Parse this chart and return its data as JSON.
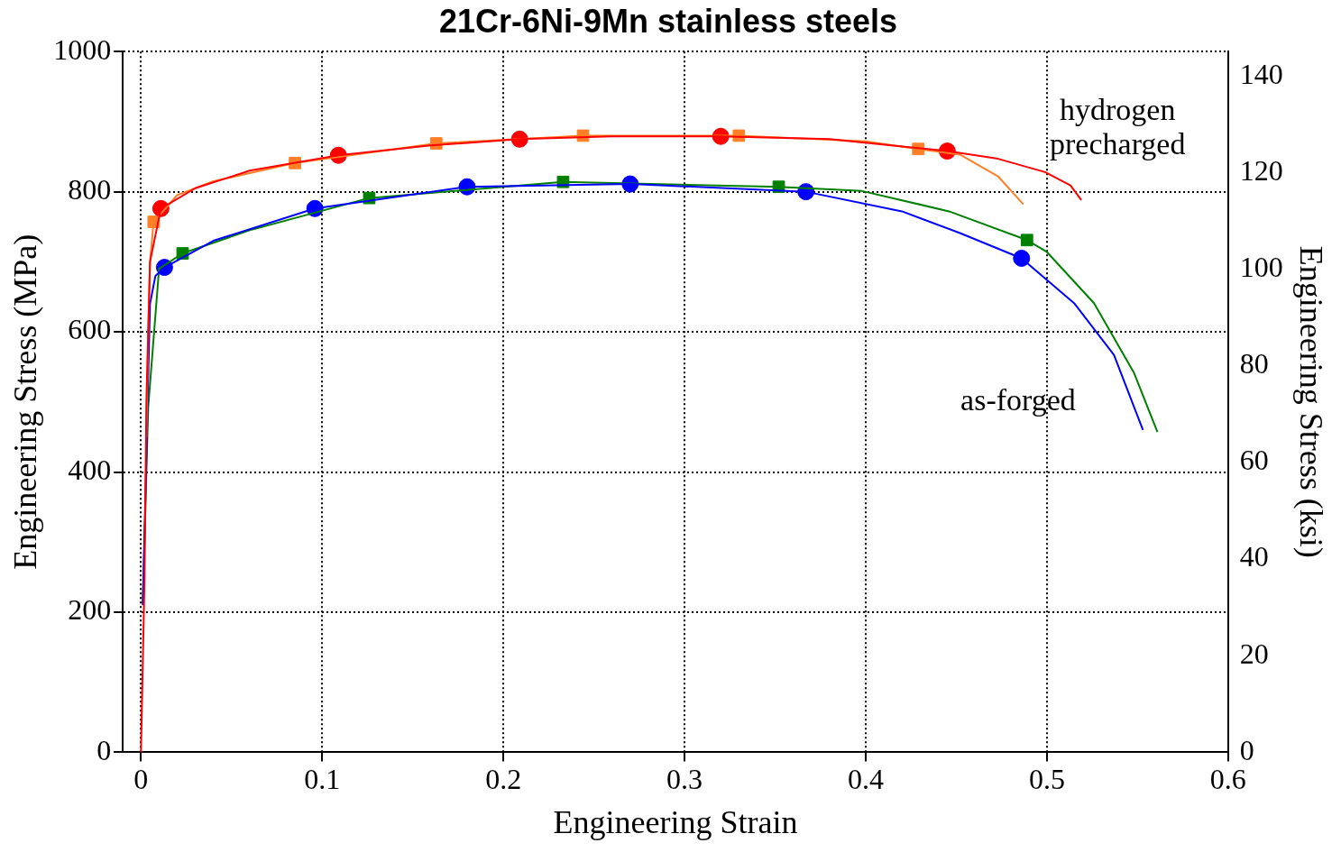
{
  "chart_data": {
    "type": "line",
    "title": "21Cr-6Ni-9Mn stainless steels",
    "xlabel": "Engineering Strain",
    "ylabel": "Engineering Stress (MPa)",
    "y2label": "Engineering Stress (ksi)",
    "xlim": [
      -0.01,
      0.6
    ],
    "xticks": [
      0,
      0.1,
      0.2,
      0.3,
      0.4,
      0.5,
      0.6
    ],
    "ylim": [
      0,
      1000
    ],
    "yticks": [
      0,
      200,
      400,
      600,
      800,
      1000
    ],
    "y2lim": [
      0,
      145.04
    ],
    "y2ticks": [
      0,
      20,
      40,
      60,
      80,
      100,
      120,
      140
    ],
    "grid": true,
    "legend": false,
    "line_style": "solid",
    "annotations": [
      "hydrogen precharged",
      "as-forged"
    ],
    "series": [
      {
        "color": "#ff0000",
        "marker": "none",
        "x": [
          0,
          0.002,
          0.003,
          0.005,
          0.011,
          0.03,
          0.06,
          0.109,
          0.16,
          0.209,
          0.26,
          0.32,
          0.38,
          0.445,
          0.473,
          0.499,
          0.513,
          0.519
        ],
        "values": [
          0,
          250,
          500,
          700,
          776,
          805,
          830,
          852,
          866,
          875,
          879,
          879,
          875,
          858,
          847,
          828,
          809,
          788
        ]
      },
      {
        "color": "#ff7f27",
        "marker": "none",
        "x": [
          0.003,
          0.004,
          0.005,
          0.007,
          0.02,
          0.04,
          0.085,
          0.163,
          0.244,
          0.33,
          0.4,
          0.429,
          0.452,
          0.473,
          0.487
        ],
        "values": [
          450,
          600,
          700,
          757,
          795,
          815,
          841,
          869,
          880,
          880,
          872,
          861,
          853,
          822,
          782
        ]
      },
      {
        "color": "#0000ff",
        "marker": "none",
        "x": [
          0.001,
          0.005,
          0.008,
          0.013,
          0.04,
          0.096,
          0.18,
          0.27,
          0.367,
          0.42,
          0.452,
          0.486,
          0.515,
          0.537,
          0.553
        ],
        "values": [
          210,
          640,
          680,
          692,
          730,
          776,
          807,
          811,
          800,
          772,
          741,
          705,
          641,
          567,
          460
        ]
      },
      {
        "color": "#008000",
        "marker": "none",
        "x": [
          0.001,
          0.004,
          0.01,
          0.023,
          0.06,
          0.126,
          0.233,
          0.352,
          0.398,
          0.446,
          0.489,
          0.5,
          0.526,
          0.548,
          0.561
        ],
        "values": [
          212,
          492,
          690,
          712,
          745,
          791,
          814,
          807,
          801,
          772,
          731,
          714,
          641,
          542,
          457
        ]
      },
      {
        "color": "#ff0000",
        "type": "scatter",
        "marker": "circle",
        "x": [
          0.011,
          0.109,
          0.209,
          0.32,
          0.445
        ],
        "values": [
          776,
          852,
          875,
          879,
          858
        ]
      },
      {
        "color": "#ff7f27",
        "type": "scatter",
        "marker": "square",
        "x": [
          0.007,
          0.085,
          0.163,
          0.244,
          0.33,
          0.429
        ],
        "values": [
          757,
          841,
          869,
          880,
          880,
          861
        ]
      },
      {
        "color": "#0000ff",
        "type": "scatter",
        "marker": "circle",
        "x": [
          0.013,
          0.096,
          0.18,
          0.27,
          0.367,
          0.486
        ],
        "values": [
          692,
          776,
          807,
          811,
          800,
          705
        ]
      },
      {
        "color": "#008000",
        "type": "scatter",
        "marker": "square",
        "x": [
          0.023,
          0.126,
          0.233,
          0.352,
          0.489
        ],
        "values": [
          712,
          791,
          814,
          807,
          731
        ]
      }
    ]
  }
}
